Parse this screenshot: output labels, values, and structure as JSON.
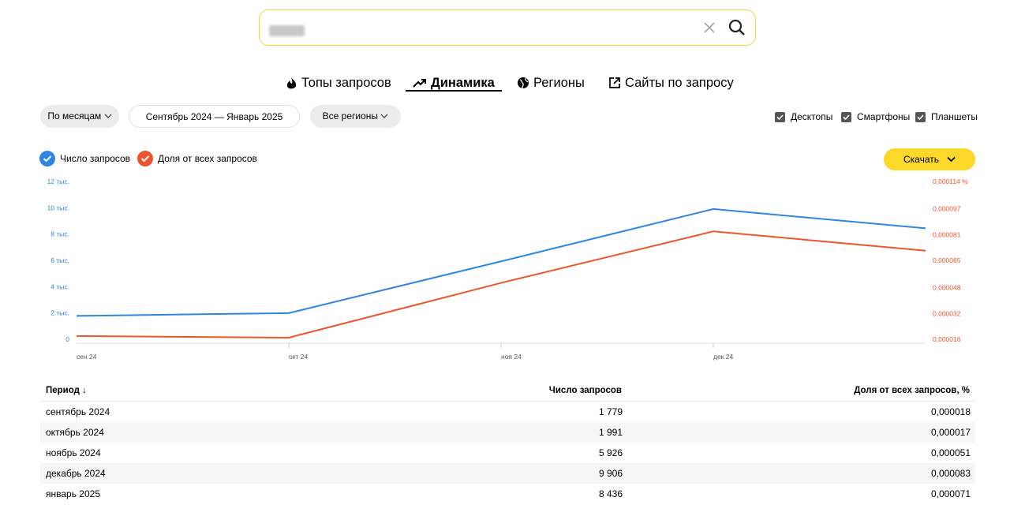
{
  "tabs": [
    "Топы запросов",
    "Динамика",
    "Регионы",
    "Сайты по запросу"
  ],
  "filters": {
    "period_type": "По месяцам",
    "date_range": "Сентябрь 2024 — Январь 2025",
    "region": "Все регионы"
  },
  "devices": [
    "Десктопы",
    "Смартфоны",
    "Планшеты"
  ],
  "download": "Скачать",
  "chart_data": {
    "type": "line",
    "categories": [
      "сен 24",
      "окт 24",
      "ноя 24",
      "дек 24",
      null
    ],
    "series": [
      {
        "name": "Число запросов",
        "color": "#2f86e0",
        "values": [
          1779,
          1991,
          5926,
          9906,
          8436
        ]
      },
      {
        "name": "Доля от всех запросов",
        "color": "#f0542d",
        "axis": "y2",
        "values": [
          1.8e-05,
          1.7e-05,
          5.1e-05,
          8.3e-05,
          7.1e-05
        ]
      }
    ],
    "ylim": [
      0,
      12000
    ],
    "yticks": [
      0,
      {
        "value": 2000,
        "label": "2 тыс."
      },
      {
        "value": 4000,
        "label": "4 тыс."
      },
      {
        "value": 6000,
        "label": "6 тыс."
      },
      {
        "value": 8000,
        "label": "8 тыс."
      },
      {
        "value": 10000,
        "label": "10 тыс."
      },
      {
        "value": 12000,
        "label": "12 тыс."
      }
    ],
    "y2lim": [
      1.6e-05,
      0.000114
    ],
    "y2ticks": [
      {
        "value": 1.6e-05,
        "label": "0,000016"
      },
      {
        "value": 3.2e-05,
        "label": "0,000032"
      },
      {
        "value": 4.8e-05,
        "label": "0,000048"
      },
      {
        "value": 6.5e-05,
        "label": "0,000065"
      },
      {
        "value": 8.1e-05,
        "label": "0,000081"
      },
      {
        "value": 9.7e-05,
        "label": "0,000097"
      },
      {
        "value": 0.000114,
        "label": "0,000114 %"
      }
    ]
  },
  "table": {
    "header": [
      "Период ↓",
      "Число запросов",
      "Доля от всех запросов, %"
    ],
    "rows": [
      [
        "сентябрь 2024",
        "1 779",
        "0,000018"
      ],
      [
        "октябрь 2024",
        "1 991",
        "0,000017"
      ],
      [
        "ноябрь 2024",
        "5 926",
        "0,000051"
      ],
      [
        "декабрь 2024",
        "9 906",
        "0,000083"
      ],
      [
        "январь 2025",
        "8 436",
        "0,000071"
      ]
    ]
  }
}
